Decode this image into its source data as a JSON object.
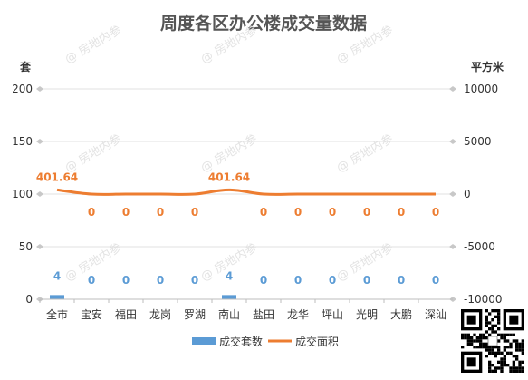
{
  "chart_data": {
    "type": "bar",
    "title": "周度各区办公楼成交量数据",
    "left_axis_unit": "套",
    "right_axis_unit": "平方米",
    "categories": [
      "全市",
      "宝安",
      "福田",
      "龙岗",
      "罗湖",
      "南山",
      "盐田",
      "龙华",
      "坪山",
      "光明",
      "大鹏",
      "深汕"
    ],
    "series": [
      {
        "name": "成交套数",
        "type": "bar",
        "axis": "left",
        "color": "#5b9bd5",
        "values": [
          4,
          0,
          0,
          0,
          0,
          4,
          0,
          0,
          0,
          0,
          0,
          0
        ]
      },
      {
        "name": "成交面积",
        "type": "line",
        "axis": "right",
        "color": "#ed7d31",
        "values": [
          401.64,
          0,
          0,
          0,
          0,
          401.64,
          0,
          0,
          0,
          0,
          0,
          0
        ]
      }
    ],
    "left_axis": {
      "ylim": [
        0,
        200
      ],
      "ticks": [
        "0",
        "50",
        "100",
        "150",
        "200"
      ]
    },
    "right_axis": {
      "ylim": [
        -10000,
        10000
      ],
      "ticks": [
        "-10000",
        "-5000",
        "0",
        "5000",
        "10000"
      ]
    },
    "grid": true,
    "legend_position": "bottom"
  },
  "watermark_text": "@ 房地内参"
}
